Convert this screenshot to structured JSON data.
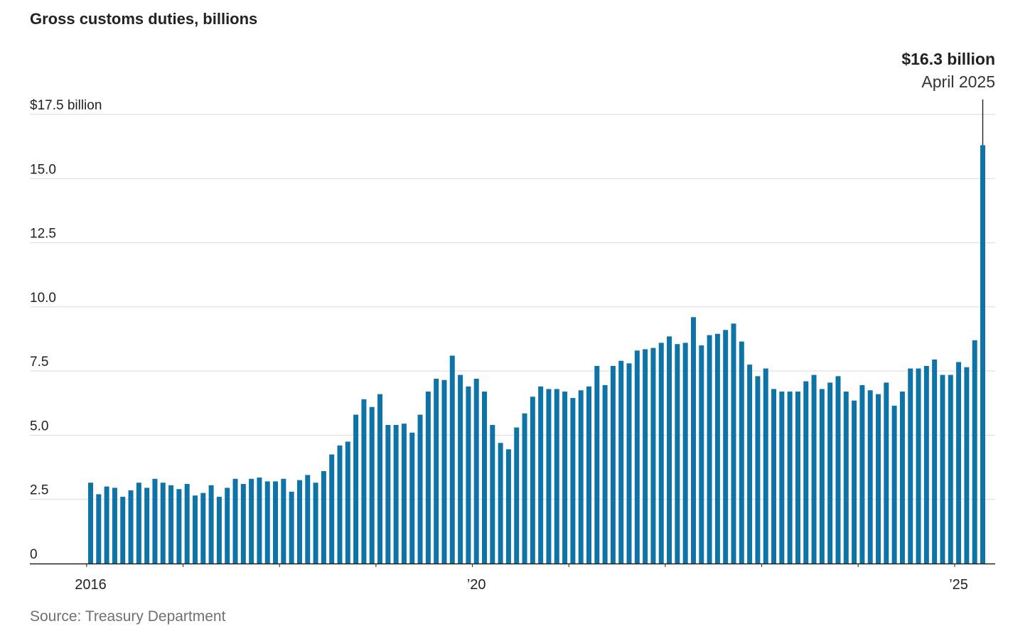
{
  "chart_data": {
    "type": "bar",
    "title": "Gross customs duties, billions",
    "source": "Source: Treasury Department",
    "color": "#0e74a8",
    "ylim": [
      0,
      17.5
    ],
    "y_ticks": [
      {
        "value": 0,
        "label": "0"
      },
      {
        "value": 2.5,
        "label": "2.5"
      },
      {
        "value": 5.0,
        "label": "5.0"
      },
      {
        "value": 7.5,
        "label": "7.5"
      },
      {
        "value": 10.0,
        "label": "10.0"
      },
      {
        "value": 12.5,
        "label": "12.5"
      },
      {
        "value": 15.0,
        "label": "15.0"
      },
      {
        "value": 17.5,
        "label": "$17.5 billion"
      }
    ],
    "x_labels": [
      {
        "index": 0,
        "label": "2016"
      },
      {
        "index": 48,
        "label": "’20"
      },
      {
        "index": 108,
        "label": "’25"
      }
    ],
    "x_year_ticks": [
      0,
      12,
      24,
      36,
      48,
      60,
      72,
      84,
      96,
      108
    ],
    "annotation": {
      "index": 111,
      "value_label": "$16.3 billion",
      "date_label": "April 2025"
    },
    "categories": [
      "Jan 2016",
      "Feb 2016",
      "Mar 2016",
      "Apr 2016",
      "May 2016",
      "Jun 2016",
      "Jul 2016",
      "Aug 2016",
      "Sep 2016",
      "Oct 2016",
      "Nov 2016",
      "Dec 2016",
      "Jan 2017",
      "Feb 2017",
      "Mar 2017",
      "Apr 2017",
      "May 2017",
      "Jun 2017",
      "Jul 2017",
      "Aug 2017",
      "Sep 2017",
      "Oct 2017",
      "Nov 2017",
      "Dec 2017",
      "Jan 2018",
      "Feb 2018",
      "Mar 2018",
      "Apr 2018",
      "May 2018",
      "Jun 2018",
      "Jul 2018",
      "Aug 2018",
      "Sep 2018",
      "Oct 2018",
      "Nov 2018",
      "Dec 2018",
      "Jan 2019",
      "Feb 2019",
      "Mar 2019",
      "Apr 2019",
      "May 2019",
      "Jun 2019",
      "Jul 2019",
      "Aug 2019",
      "Sep 2019",
      "Oct 2019",
      "Nov 2019",
      "Dec 2019",
      "Jan 2020",
      "Feb 2020",
      "Mar 2020",
      "Apr 2020",
      "May 2020",
      "Jun 2020",
      "Jul 2020",
      "Aug 2020",
      "Sep 2020",
      "Oct 2020",
      "Nov 2020",
      "Dec 2020",
      "Jan 2021",
      "Feb 2021",
      "Mar 2021",
      "Apr 2021",
      "May 2021",
      "Jun 2021",
      "Jul 2021",
      "Aug 2021",
      "Sep 2021",
      "Oct 2021",
      "Nov 2021",
      "Dec 2021",
      "Jan 2022",
      "Feb 2022",
      "Mar 2022",
      "Apr 2022",
      "May 2022",
      "Jun 2022",
      "Jul 2022",
      "Aug 2022",
      "Sep 2022",
      "Oct 2022",
      "Nov 2022",
      "Dec 2022",
      "Jan 2023",
      "Feb 2023",
      "Mar 2023",
      "Apr 2023",
      "May 2023",
      "Jun 2023",
      "Jul 2023",
      "Aug 2023",
      "Sep 2023",
      "Oct 2023",
      "Nov 2023",
      "Dec 2023",
      "Jan 2024",
      "Feb 2024",
      "Mar 2024",
      "Apr 2024",
      "May 2024",
      "Jun 2024",
      "Jul 2024",
      "Aug 2024",
      "Sep 2024",
      "Oct 2024",
      "Nov 2024",
      "Dec 2024",
      "Jan 2025",
      "Feb 2025",
      "Mar 2025",
      "Apr 2025"
    ],
    "values": [
      3.15,
      2.7,
      3.0,
      2.95,
      2.6,
      2.85,
      3.15,
      2.95,
      3.3,
      3.15,
      3.05,
      2.9,
      3.1,
      2.65,
      2.75,
      3.05,
      2.6,
      2.95,
      3.3,
      3.1,
      3.3,
      3.35,
      3.2,
      3.2,
      3.3,
      2.8,
      3.25,
      3.45,
      3.15,
      3.6,
      4.25,
      4.6,
      4.75,
      5.8,
      6.4,
      6.1,
      6.6,
      5.4,
      5.4,
      5.45,
      5.1,
      5.8,
      6.7,
      7.2,
      7.15,
      8.1,
      7.35,
      6.9,
      7.2,
      6.7,
      5.4,
      4.7,
      4.45,
      5.3,
      5.85,
      6.5,
      6.9,
      6.8,
      6.8,
      6.7,
      6.45,
      6.75,
      6.9,
      7.7,
      6.95,
      7.7,
      7.9,
      7.8,
      8.3,
      8.35,
      8.4,
      8.6,
      8.85,
      8.55,
      8.6,
      9.6,
      8.5,
      8.9,
      8.95,
      9.1,
      9.35,
      8.65,
      7.75,
      7.3,
      7.6,
      6.8,
      6.7,
      6.7,
      6.7,
      7.1,
      7.35,
      6.8,
      7.05,
      7.3,
      6.7,
      6.35,
      6.95,
      6.75,
      6.6,
      7.05,
      6.15,
      6.7,
      7.6,
      7.6,
      7.7,
      7.95,
      7.35,
      7.35,
      7.85,
      7.65,
      8.7,
      16.3
    ]
  }
}
